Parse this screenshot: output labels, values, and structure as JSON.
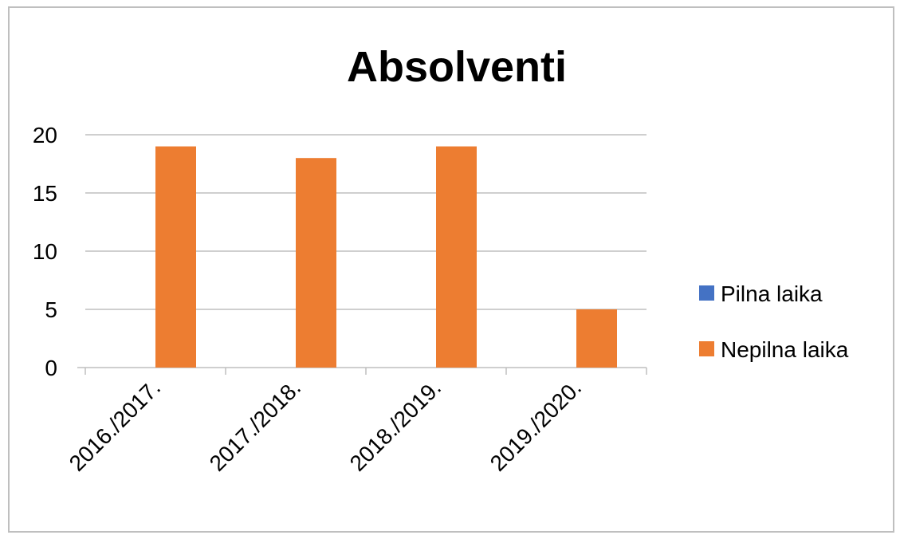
{
  "chart_data": {
    "type": "bar",
    "title": "Absolventi",
    "categories": [
      "2016./2017.",
      "2017./2018.",
      "2018./2019.",
      "2019./2020."
    ],
    "series": [
      {
        "name": "Pilna laika",
        "values": [
          0,
          0,
          0,
          0
        ],
        "color": "#4472C4"
      },
      {
        "name": "Nepilna laika",
        "values": [
          19,
          18,
          19,
          5
        ],
        "color": "#ED7D31"
      }
    ],
    "ylim": [
      0,
      20
    ],
    "yticks": [
      0,
      5,
      10,
      15,
      20
    ],
    "grid": true,
    "legend": "right"
  }
}
